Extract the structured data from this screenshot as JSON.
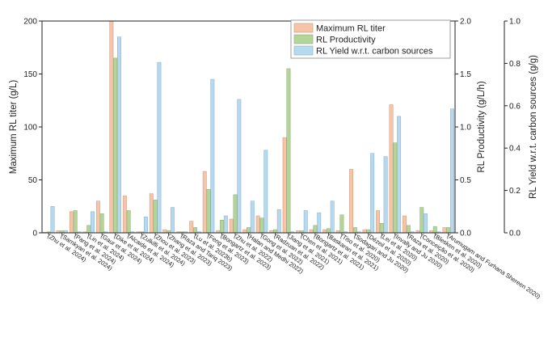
{
  "chart_data": {
    "type": "bar",
    "categories": [
      "(Zhu et al. 2024)",
      "(Sarnkyan et al. 2024)",
      "(Pang et al. 2024)",
      "(Lin et al. 2024)",
      "(Gaur et al. 2024)",
      "(Dike et al. 2024)",
      "(Alcaide et al. 2024)",
      "(Zulkifli et al. 2024)",
      "(Zhou et al. 2023)",
      "(Zhang et al. 2023)",
      "(Raza and Tariq 2023)",
      "(Lu et al. 2023b)",
      "(Feng et al. 2023)",
      "(Bongartz et al. 2023)",
      "(Zhu et al. 2022)",
      "(Halan and Medhi 2022)",
      "(Gong et al. 2022)",
      "(Radzuan et al. 2022)",
      "(Jiang et al. 2021)",
      "(Chen et al. 2021)",
      "(Bongartz et al. 2021)",
      "(Baskaran et al. 2021)",
      "(Tiso et al. 2020)",
      "(Sodagari and Ju 2020)",
      "(Dézeil et al. 2020)",
      "(Lei et al. 2020)",
      "(Invally and Ju 2020)",
      "(Raza et al. 2020)",
      "(Conceição et al. 2020)",
      "(Blesken et al. 2020)",
      "(Arumugam and Furhana Shereen 2020)"
    ],
    "series": [
      {
        "name": "Maximum RL titer",
        "axis": "left",
        "color": "#f6c4a6",
        "values": [
          0.5,
          2,
          20,
          1,
          30,
          200,
          35,
          1,
          37,
          3,
          1,
          11,
          58,
          2,
          13,
          3,
          16,
          2,
          90,
          2,
          3,
          3,
          2,
          60,
          3,
          21,
          121,
          16,
          2,
          2,
          5
        ]
      },
      {
        "name": "RL Productivity",
        "axis": "middle",
        "color": "#b3d59a",
        "values": [
          0.01,
          0.02,
          0.21,
          0.07,
          0.18,
          1.65,
          0.21,
          0.01,
          0.31,
          0.02,
          0.01,
          0.05,
          0.41,
          0.12,
          0.36,
          0.05,
          0.14,
          0.03,
          1.55,
          0.02,
          0.07,
          0.04,
          0.17,
          0.05,
          0.03,
          0.09,
          0.85,
          0.07,
          0.24,
          0.06,
          0.05
        ]
      },
      {
        "name": "RL Yield w.r.t. carbon sources",
        "axis": "right",
        "color": "#b7d9ef",
        "values": [
          0.125,
          0.01,
          0.005,
          0.1,
          0.005,
          0.925,
          0.005,
          0.075,
          0.805,
          0.12,
          0.005,
          0.005,
          0.725,
          0.08,
          0.63,
          0.15,
          0.39,
          0.11,
          0.005,
          0.105,
          0.095,
          0.15,
          0.005,
          0.005,
          0.375,
          0.36,
          0.55,
          0.005,
          0.09,
          0.005,
          0.585
        ]
      }
    ],
    "axes": {
      "left": {
        "label": "Maximum RL titer (g/L)",
        "ylim": [
          0,
          200
        ],
        "ticks": [
          "0",
          "50",
          "100",
          "150",
          "200"
        ]
      },
      "middle": {
        "label": "RL Productivity (g/L/h)",
        "ylim": [
          0,
          2.0
        ],
        "ticks": [
          "0.0",
          "0.5",
          "1.0",
          "1.5",
          "2.0"
        ]
      },
      "right": {
        "label": "RL Yield w.r.t. carbon sources (g/g)",
        "ylim": [
          0,
          1.0
        ],
        "ticks": [
          "0.0",
          "0.2",
          "0.4",
          "0.6",
          "0.8",
          "1.0"
        ]
      }
    },
    "legend": {
      "placement": "top-right",
      "entries": [
        "Maximum RL titer",
        "RL Productivity",
        "RL Yield w.r.t. carbon sources"
      ]
    },
    "grid": false
  }
}
